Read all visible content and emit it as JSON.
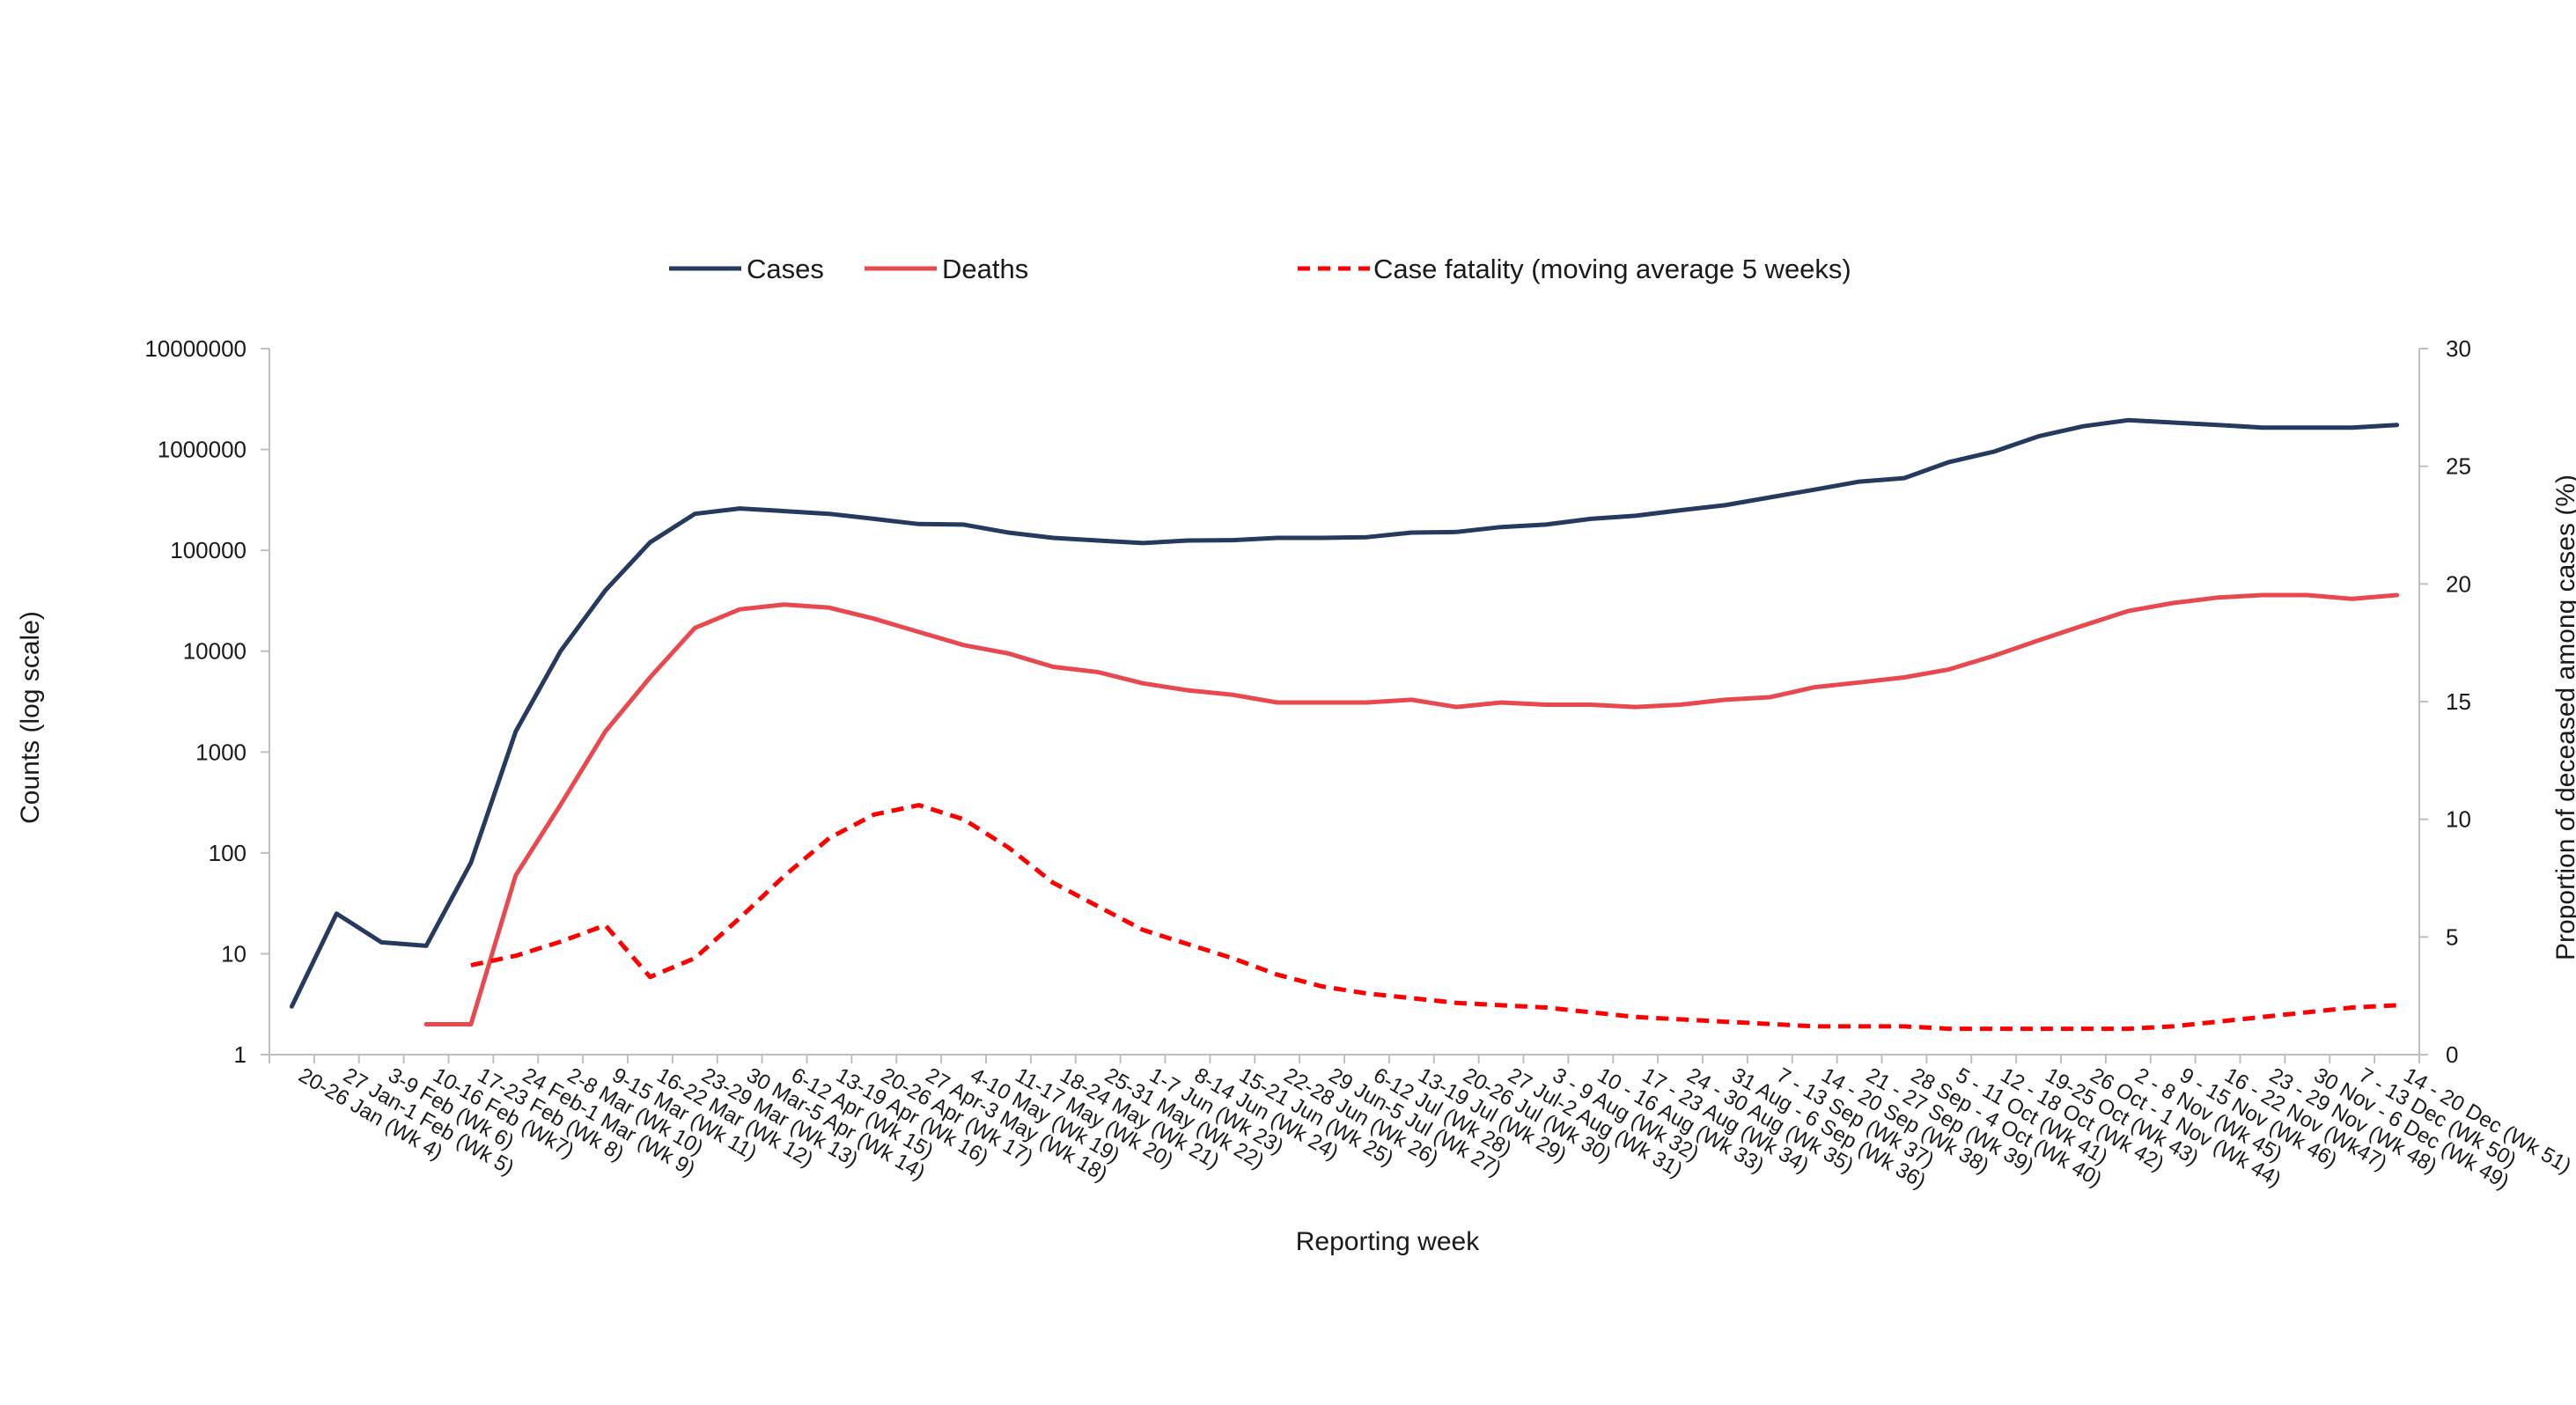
{
  "chart_data": {
    "type": "line",
    "title": "",
    "xlabel": "Reporting week",
    "ylabel": "Counts (log scale)",
    "ylabel_right": "Proportion of deceased among cases (%)",
    "y_scale": "log",
    "ylim": [
      1,
      10000000
    ],
    "y_ticks": [
      "1",
      "10",
      "100",
      "1000",
      "10000",
      "100000",
      "1000000",
      "10000000"
    ],
    "y2lim": [
      0,
      30
    ],
    "y2_ticks": [
      "0",
      "5",
      "10",
      "15",
      "20",
      "25",
      "30"
    ],
    "grid": false,
    "legend_position": "top",
    "categories": [
      "20-26 Jan (Wk 4)",
      "27 Jan-1 Feb (Wk 5)",
      "3-9 Feb (Wk 6)",
      "10-16 Feb (Wk7)",
      "17-23 Feb (Wk 8)",
      "24 Feb-1 Mar (Wk 9)",
      "2-8 Mar (Wk 10)",
      "9-15 Mar (Wk 11)",
      "16-22 Mar (Wk 12)",
      "23-29 Mar (Wk 13)",
      "30 Mar-5 Apr (Wk 14)",
      "6-12 Apr (Wk 15)",
      "13-19 Apr (Wk 16)",
      "20-26 Apr (Wk 17)",
      "27 Apr-3 May (Wk 18)",
      "4-10 May (Wk 19)",
      "11-17 May (Wk 20)",
      "18-24 May (Wk 21)",
      "25-31 May (Wk 22)",
      "1-7 Jun (Wk 23)",
      "8-14 Jun (Wk 24)",
      "15-21 Jun (Wk 25)",
      "22-28 Jun (Wk 26)",
      "29 Jun-5 Jul (Wk 27)",
      "6-12 Jul (Wk 28)",
      "13-19 Jul (Wk 29)",
      "20-26 Jul (Wk 30)",
      "27 Jul-2 Aug (Wk 31)",
      "3 - 9 Aug (Wk 32)",
      "10 - 16 Aug (Wk 33)",
      "17 - 23 Aug (Wk 34)",
      "24 - 30 Aug (Wk 35)",
      "31 Aug - 6 Sep (Wk 36)",
      "7 - 13 Sep (Wk 37)",
      "14 - 20 Sep (Wk 38)",
      "21 - 27 Sep (Wk 39)",
      "28 Sep - 4 Oct (Wk 40)",
      "5 - 11 Oct (Wk 41)",
      "12 - 18 Oct (Wk 42)",
      "19-25 Oct (Wk 43)",
      "26 Oct - 1 Nov (Wk 44)",
      "2 - 8 Nov (Wk 45)",
      "9 - 15 Nov (Wk 46)",
      "16 - 22 Nov (Wk47)",
      "23 - 29 Nov (Wk 48)",
      "30 Nov - 6 Dec (Wk 49)",
      "7 - 13 Dec (Wk 50)",
      "14 - 20 Dec (Wk 51)"
    ],
    "series": [
      {
        "name": "Cases",
        "axis": "left",
        "color": "#243a5e",
        "style": "solid",
        "values": [
          3,
          25,
          13,
          12,
          80,
          1600,
          10000,
          40000,
          120000,
          230000,
          260000,
          245000,
          230000,
          205000,
          182000,
          180000,
          150000,
          133000,
          125000,
          118000,
          125000,
          126000,
          133000,
          133000,
          135000,
          150000,
          152000,
          170000,
          180000,
          205000,
          220000,
          250000,
          280000,
          335000,
          400000,
          480000,
          520000,
          750000,
          950000,
          1350000,
          1700000,
          1950000,
          1850000,
          1750000,
          1650000,
          1650000,
          1650000,
          1750000
        ]
      },
      {
        "name": "Deaths",
        "axis": "left",
        "color": "#e8494f",
        "style": "solid",
        "values": [
          null,
          null,
          null,
          2,
          2,
          60,
          300,
          1600,
          5500,
          17000,
          26000,
          29000,
          27000,
          21000,
          15500,
          11500,
          9500,
          7000,
          6200,
          4800,
          4100,
          3700,
          3100,
          3100,
          3100,
          3300,
          2800,
          3100,
          2950,
          2950,
          2800,
          2950,
          3300,
          3500,
          4400,
          4900,
          5500,
          6600,
          9000,
          12800,
          18000,
          25000,
          30000,
          34000,
          36000,
          36000,
          33000,
          36000
        ]
      },
      {
        "name": "Case fatality (moving average 5 weeks)",
        "axis": "right",
        "color": "#ff0000",
        "style": "dashed",
        "values": [
          null,
          null,
          null,
          null,
          3.8,
          4.2,
          4.8,
          5.5,
          3.3,
          4.1,
          5.8,
          7.6,
          9.2,
          10.2,
          10.6,
          10.0,
          8.8,
          7.3,
          6.3,
          5.3,
          4.7,
          4.1,
          3.4,
          2.9,
          2.6,
          2.4,
          2.2,
          2.1,
          2.0,
          1.8,
          1.6,
          1.5,
          1.4,
          1.3,
          1.2,
          1.2,
          1.2,
          1.1,
          1.1,
          1.1,
          1.1,
          1.1,
          1.2,
          1.4,
          1.6,
          1.8,
          2.0,
          2.1
        ]
      }
    ]
  }
}
